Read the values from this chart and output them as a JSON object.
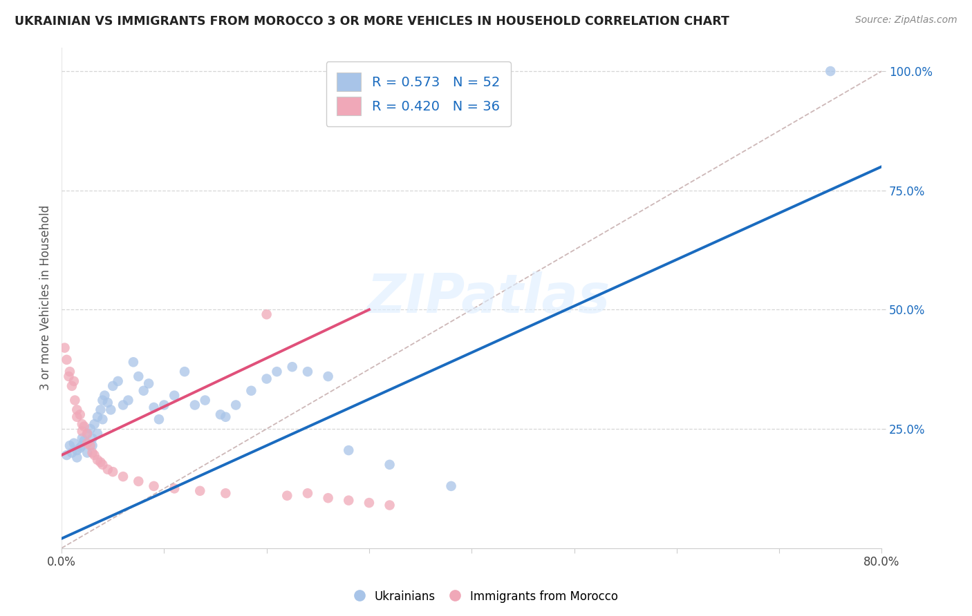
{
  "title": "UKRAINIAN VS IMMIGRANTS FROM MOROCCO 3 OR MORE VEHICLES IN HOUSEHOLD CORRELATION CHART",
  "source": "Source: ZipAtlas.com",
  "xlabel": "",
  "ylabel": "3 or more Vehicles in Household",
  "xmin": 0.0,
  "xmax": 0.8,
  "ymin": 0.0,
  "ymax": 1.05,
  "right_yticks": [
    0.25,
    0.5,
    0.75,
    1.0
  ],
  "right_ytick_labels": [
    "25.0%",
    "50.0%",
    "75.0%",
    "100.0%"
  ],
  "xticks": [
    0.0,
    0.1,
    0.2,
    0.3,
    0.4,
    0.5,
    0.6,
    0.7,
    0.8
  ],
  "xtick_labels": [
    "0.0%",
    "",
    "",
    "",
    "",
    "",
    "",
    "",
    "80.0%"
  ],
  "watermark": "ZIPatlas",
  "blue_color": "#a8c4e8",
  "pink_color": "#f0a8b8",
  "blue_line_color": "#1a6bbf",
  "pink_line_color": "#e0507a",
  "diag_line_color": "#c8b0b0",
  "legend_R_blue": "R = 0.573",
  "legend_N_blue": "N = 52",
  "legend_R_pink": "R = 0.420",
  "legend_N_pink": "N = 36",
  "blue_points_x": [
    0.005,
    0.008,
    0.01,
    0.012,
    0.015,
    0.015,
    0.018,
    0.02,
    0.02,
    0.022,
    0.025,
    0.025,
    0.028,
    0.03,
    0.03,
    0.032,
    0.035,
    0.035,
    0.038,
    0.04,
    0.04,
    0.042,
    0.045,
    0.048,
    0.05,
    0.055,
    0.06,
    0.065,
    0.07,
    0.075,
    0.08,
    0.085,
    0.09,
    0.095,
    0.1,
    0.11,
    0.12,
    0.13,
    0.14,
    0.155,
    0.16,
    0.17,
    0.185,
    0.2,
    0.21,
    0.225,
    0.24,
    0.26,
    0.28,
    0.32,
    0.38,
    0.75
  ],
  "blue_points_y": [
    0.195,
    0.215,
    0.2,
    0.22,
    0.205,
    0.19,
    0.21,
    0.23,
    0.215,
    0.225,
    0.24,
    0.2,
    0.25,
    0.23,
    0.215,
    0.26,
    0.275,
    0.24,
    0.29,
    0.31,
    0.27,
    0.32,
    0.305,
    0.29,
    0.34,
    0.35,
    0.3,
    0.31,
    0.39,
    0.36,
    0.33,
    0.345,
    0.295,
    0.27,
    0.3,
    0.32,
    0.37,
    0.3,
    0.31,
    0.28,
    0.275,
    0.3,
    0.33,
    0.355,
    0.37,
    0.38,
    0.37,
    0.36,
    0.205,
    0.175,
    0.13,
    1.0
  ],
  "pink_points_x": [
    0.003,
    0.005,
    0.007,
    0.008,
    0.01,
    0.012,
    0.013,
    0.015,
    0.015,
    0.018,
    0.02,
    0.02,
    0.022,
    0.025,
    0.025,
    0.028,
    0.03,
    0.032,
    0.035,
    0.038,
    0.04,
    0.045,
    0.05,
    0.06,
    0.075,
    0.09,
    0.11,
    0.135,
    0.16,
    0.2,
    0.22,
    0.24,
    0.26,
    0.28,
    0.3,
    0.32
  ],
  "pink_points_y": [
    0.42,
    0.395,
    0.36,
    0.37,
    0.34,
    0.35,
    0.31,
    0.29,
    0.275,
    0.28,
    0.26,
    0.245,
    0.255,
    0.24,
    0.22,
    0.215,
    0.2,
    0.195,
    0.185,
    0.18,
    0.175,
    0.165,
    0.16,
    0.15,
    0.14,
    0.13,
    0.125,
    0.12,
    0.115,
    0.49,
    0.11,
    0.115,
    0.105,
    0.1,
    0.095,
    0.09
  ],
  "blue_line_x": [
    0.0,
    0.8
  ],
  "blue_line_y": [
    0.02,
    0.8
  ],
  "pink_line_x": [
    0.0,
    0.3
  ],
  "pink_line_y": [
    0.195,
    0.5
  ],
  "diag_line_x": [
    0.0,
    0.8
  ],
  "diag_line_y": [
    0.0,
    1.0
  ]
}
